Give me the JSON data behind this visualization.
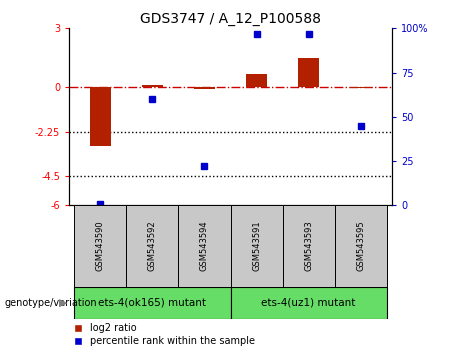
{
  "title": "GDS3747 / A_12_P100588",
  "samples": [
    "GSM543590",
    "GSM543592",
    "GSM543594",
    "GSM543591",
    "GSM543593",
    "GSM543595"
  ],
  "log2_ratio": [
    -3.0,
    0.12,
    -0.08,
    0.7,
    1.5,
    -0.05
  ],
  "percentile": [
    1,
    60,
    22,
    97,
    97,
    45
  ],
  "group1_label": "ets-4(ok165) mutant",
  "group2_label": "ets-4(uz1) mutant",
  "bar_color": "#b22000",
  "dot_color": "#0000cc",
  "hline_color": "#cc0000",
  "ylim_left": [
    -6,
    3
  ],
  "ylim_right": [
    0,
    100
  ],
  "hlines_dotted": [
    -2.25,
    -4.5
  ],
  "sample_bg": "#c8c8c8",
  "group_bg": "#66dd66",
  "legend_label_red": "log2 ratio",
  "legend_label_blue": "percentile rank within the sample",
  "genotype_label": "genotype/variation",
  "left_yticks": [
    3,
    0,
    -2.25,
    -4.5,
    -6
  ],
  "left_yticklabels": [
    "3",
    "0",
    "-2.25",
    "-4.5",
    "-6"
  ],
  "right_yticks": [
    0,
    25,
    50,
    75,
    100
  ],
  "right_yticklabels": [
    "0",
    "25",
    "50",
    "75",
    "100%"
  ]
}
